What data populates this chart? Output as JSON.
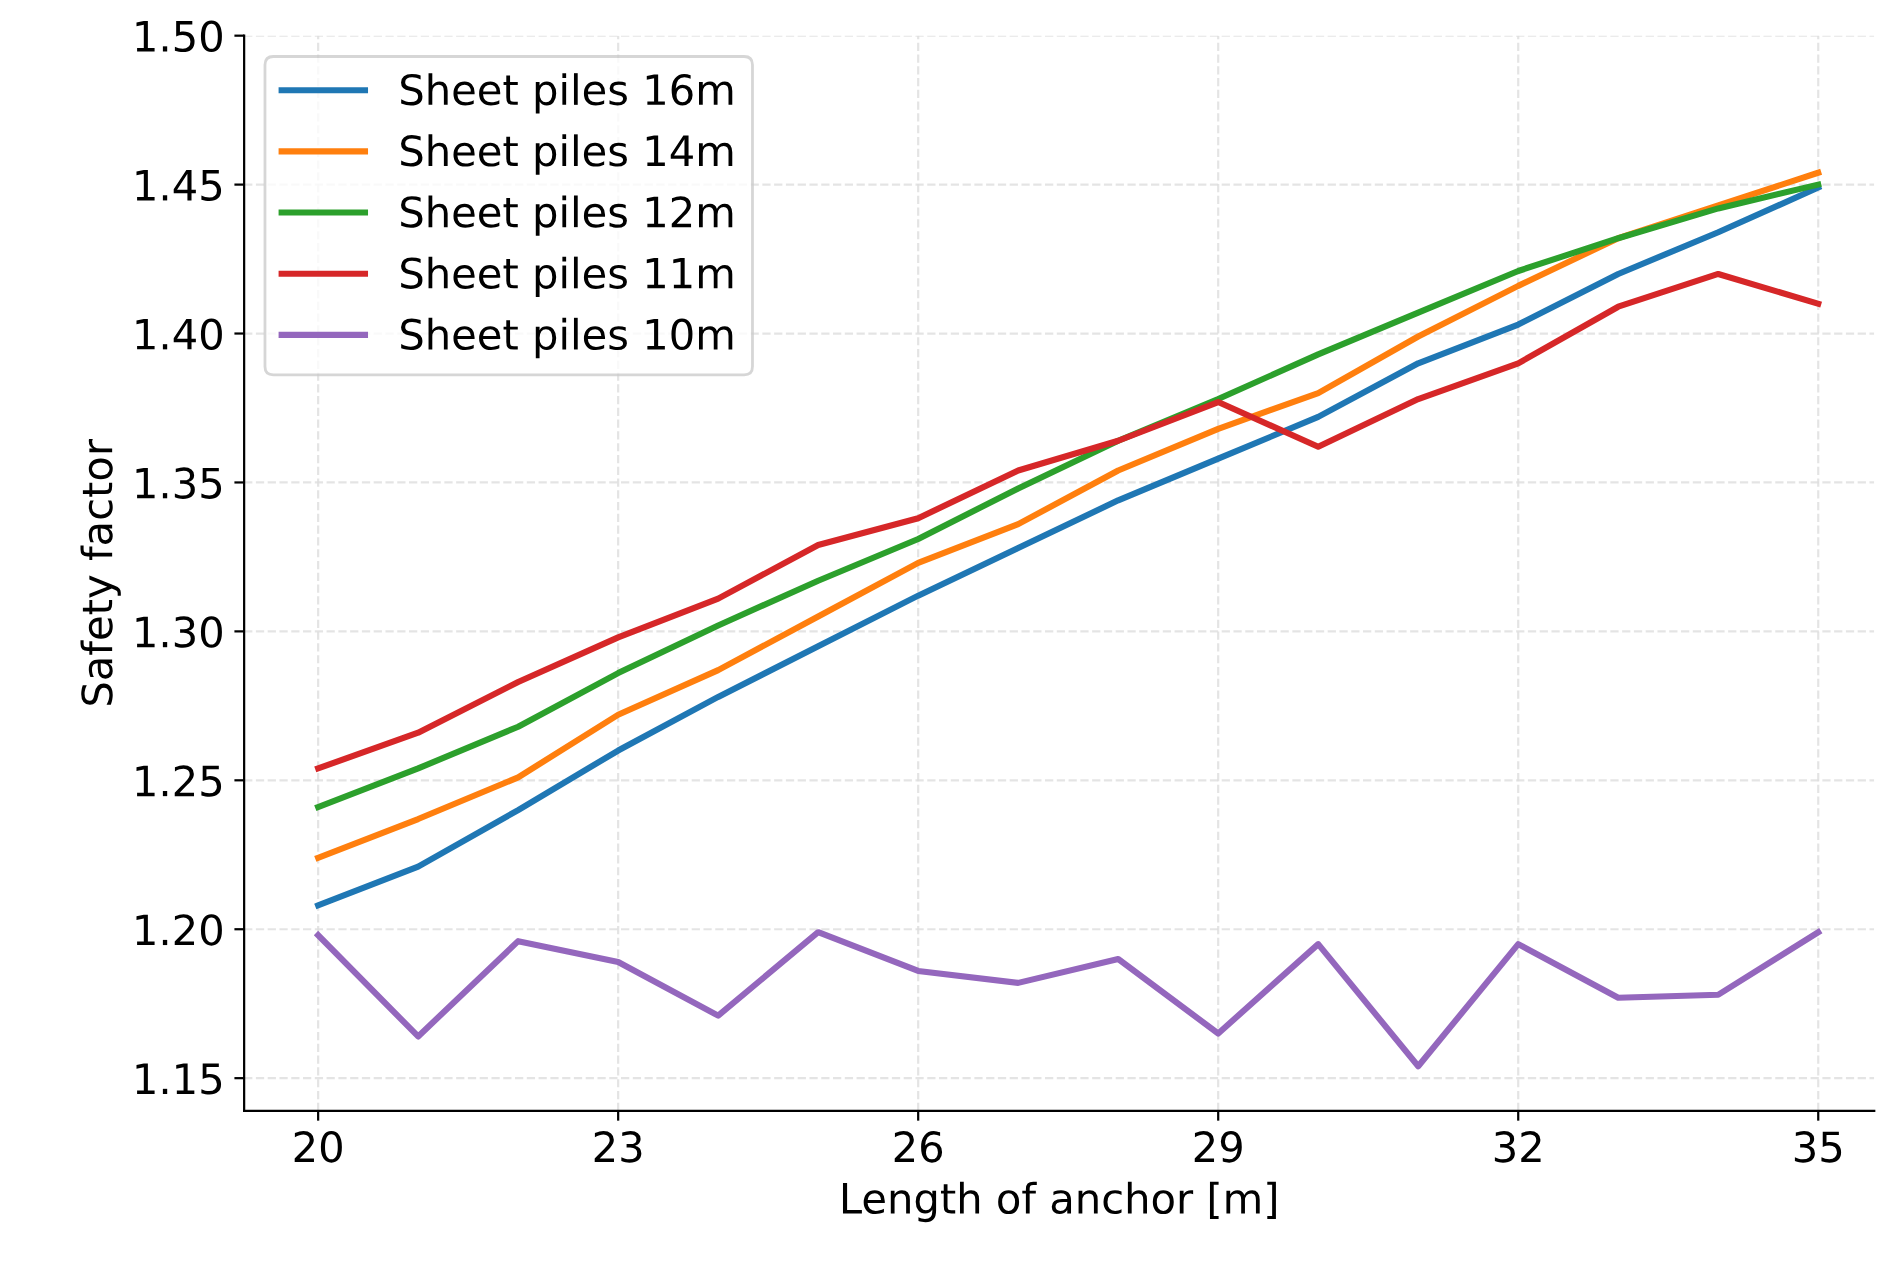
{
  "chart_data": {
    "type": "line",
    "xlabel": "Length of anchor [m]",
    "ylabel": "Safety factor",
    "x": [
      20,
      21,
      22,
      23,
      24,
      25,
      26,
      27,
      28,
      29,
      30,
      31,
      32,
      33,
      34,
      35
    ],
    "series": [
      {
        "name": "Sheet piles 16m",
        "color": "#1f77b4",
        "values": [
          1.208,
          1.221,
          1.24,
          1.26,
          1.278,
          1.295,
          1.312,
          1.328,
          1.344,
          1.358,
          1.372,
          1.39,
          1.403,
          1.42,
          1.434,
          1.449
        ]
      },
      {
        "name": "Sheet piles 14m",
        "color": "#ff7f0e",
        "values": [
          1.224,
          1.237,
          1.251,
          1.272,
          1.287,
          1.305,
          1.323,
          1.336,
          1.354,
          1.368,
          1.38,
          1.399,
          1.416,
          1.432,
          1.443,
          1.454
        ]
      },
      {
        "name": "Sheet piles 12m",
        "color": "#2ca02c",
        "values": [
          1.241,
          1.254,
          1.268,
          1.286,
          1.302,
          1.317,
          1.331,
          1.348,
          1.364,
          1.378,
          1.393,
          1.407,
          1.421,
          1.432,
          1.442,
          1.45
        ]
      },
      {
        "name": "Sheet piles 11m",
        "color": "#d62728",
        "values": [
          1.254,
          1.266,
          1.283,
          1.298,
          1.311,
          1.329,
          1.338,
          1.354,
          1.364,
          1.377,
          1.362,
          1.378,
          1.39,
          1.409,
          1.42,
          1.41
        ]
      },
      {
        "name": "Sheet piles 10m",
        "color": "#9467bd",
        "values": [
          1.198,
          1.164,
          1.196,
          1.189,
          1.171,
          1.199,
          1.186,
          1.182,
          1.19,
          1.165,
          1.195,
          1.154,
          1.195,
          1.177,
          1.178,
          1.199
        ]
      }
    ],
    "xlim": [
      19.26,
      35.56
    ],
    "xticks": [
      20,
      23,
      26,
      29,
      32,
      35
    ],
    "ylim": [
      1.139,
      1.5
    ],
    "yticks": [
      1.15,
      {
        "value": 1.2,
        "label": "1.20"
      },
      1.25,
      {
        "value": 1.3,
        "label": "1.30"
      },
      1.35,
      {
        "value": 1.4,
        "label": "1.40"
      },
      1.45,
      {
        "value": 1.5,
        "label": "1.50"
      }
    ],
    "grid": true,
    "legend": "top left",
    "marker": "none",
    "line_style": "solid"
  }
}
